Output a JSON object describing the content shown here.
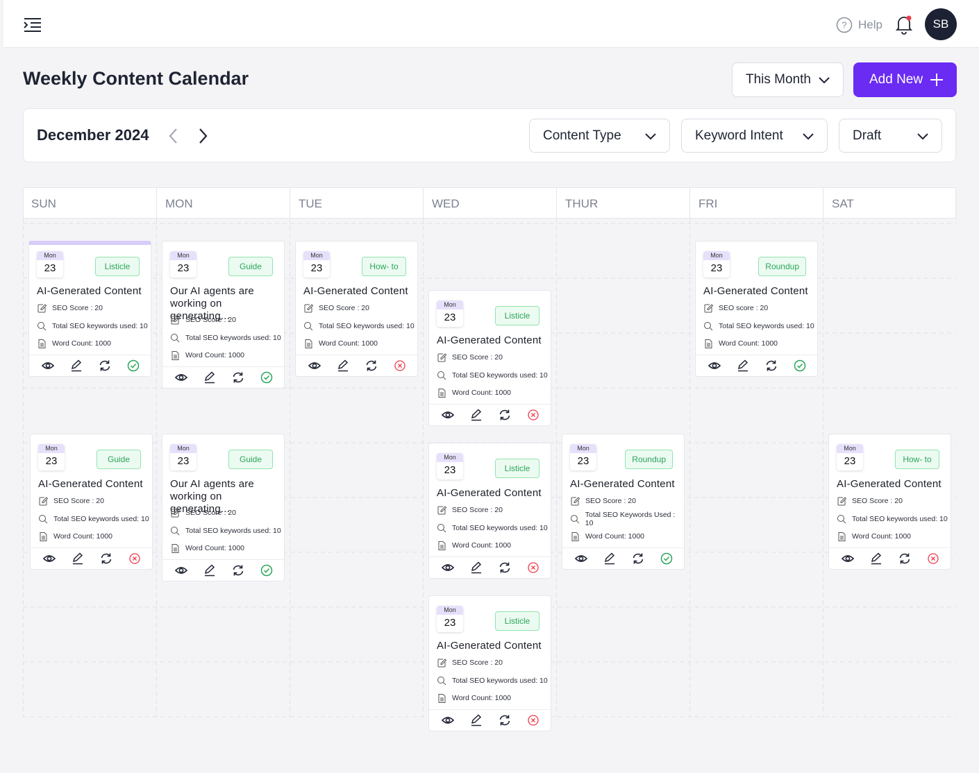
{
  "header": {
    "help": "Help",
    "avatar": "SB"
  },
  "page": {
    "title": "Weekly Content Calendar",
    "range": "This Month",
    "add": "Add New"
  },
  "toolbar": {
    "month": "December 2024",
    "filters": [
      "Content Type",
      "Keyword Intent",
      "Draft"
    ]
  },
  "calendar": {
    "days": [
      {
        "name": "SUN",
        "cards": [
          {
            "day": "Mon",
            "date": "23",
            "tag": "Listicle",
            "title": "AI-Generated Content",
            "seo": "SEO Score : 20",
            "keywords": "Total SEO keywords used: 10",
            "words": "Word Count: 1000",
            "status": "approved"
          },
          {
            "day": "Mon",
            "date": "23",
            "tag": "Guide",
            "title": "AI-Generated Content",
            "seo": "SEO Score : 20",
            "keywords": "Total SEO keywords used: 10",
            "words": "Word Count: 1000",
            "status": "rejected"
          }
        ]
      },
      {
        "name": "MON",
        "cards": [
          {
            "day": "Mon",
            "date": "23",
            "tag": "Guide",
            "title": "Our AI agents are working on generating...",
            "seo": "SEO Score : 20",
            "keywords": "Total SEO keywords used: 10",
            "words": "Word Count: 1000",
            "status": "approved"
          },
          {
            "day": "Mon",
            "date": "23",
            "tag": "Guide",
            "title": "Our AI agents are working on generating...",
            "seo": "SEO Score : 20",
            "keywords": "Total SEO keywords used: 10",
            "words": "Word Count: 1000",
            "status": "approved"
          }
        ]
      },
      {
        "name": "TUE",
        "cards": [
          {
            "day": "Mon",
            "date": "23",
            "tag": "How- to",
            "title": "AI-Generated Content",
            "seo": "SEO Score : 20",
            "keywords": "Total SEO keywords used: 10",
            "words": "Word Count: 1000",
            "status": "rejected"
          }
        ]
      },
      {
        "name": "WED",
        "cards": [
          {
            "day": "Mon",
            "date": "23",
            "tag": "Listicle",
            "title": "AI-Generated Content",
            "seo": "SEO Score : 20",
            "keywords": "Total SEO keywords used: 10",
            "words": "Word Count: 1000",
            "status": "rejected"
          },
          {
            "day": "Mon",
            "date": "23",
            "tag": "Listicle",
            "title": "AI-Generated Content",
            "seo": "SEO Score : 20",
            "keywords": "Total SEO keywords used: 10",
            "words": "Word Count: 1000",
            "status": "rejected"
          },
          {
            "day": "Mon",
            "date": "23",
            "tag": "Listicle",
            "title": "AI-Generated Content",
            "seo": "SEO Score : 20",
            "keywords": "Total SEO keywords used: 10",
            "words": "Word Count: 1000",
            "status": "rejected"
          }
        ]
      },
      {
        "name": "THUR",
        "cards": [
          {
            "day": "Mon",
            "date": "23",
            "tag": "Roundup",
            "title": "AI-Generated Content",
            "seo": "SEO Score : 20",
            "keywords": "Total SEO Keywords Used : 10",
            "words": "Word Count: 1000",
            "status": "approved"
          }
        ]
      },
      {
        "name": "FRI",
        "cards": [
          {
            "day": "Mon",
            "date": "23",
            "tag": "Roundup",
            "title": "AI-Generated Content",
            "seo": "SEO score : 20",
            "keywords": "Total SEO keywords used: 10",
            "words": "Word Count: 1000",
            "status": "approved"
          }
        ]
      },
      {
        "name": "SAT",
        "cards": [
          {
            "day": "Mon",
            "date": "23",
            "tag": "How- to",
            "title": "AI-Generated Content",
            "seo": "SEO Score : 20",
            "keywords": "Total SEO keywords used: 10",
            "words": "Word Count: 1000",
            "status": "rejected"
          }
        ]
      }
    ]
  }
}
